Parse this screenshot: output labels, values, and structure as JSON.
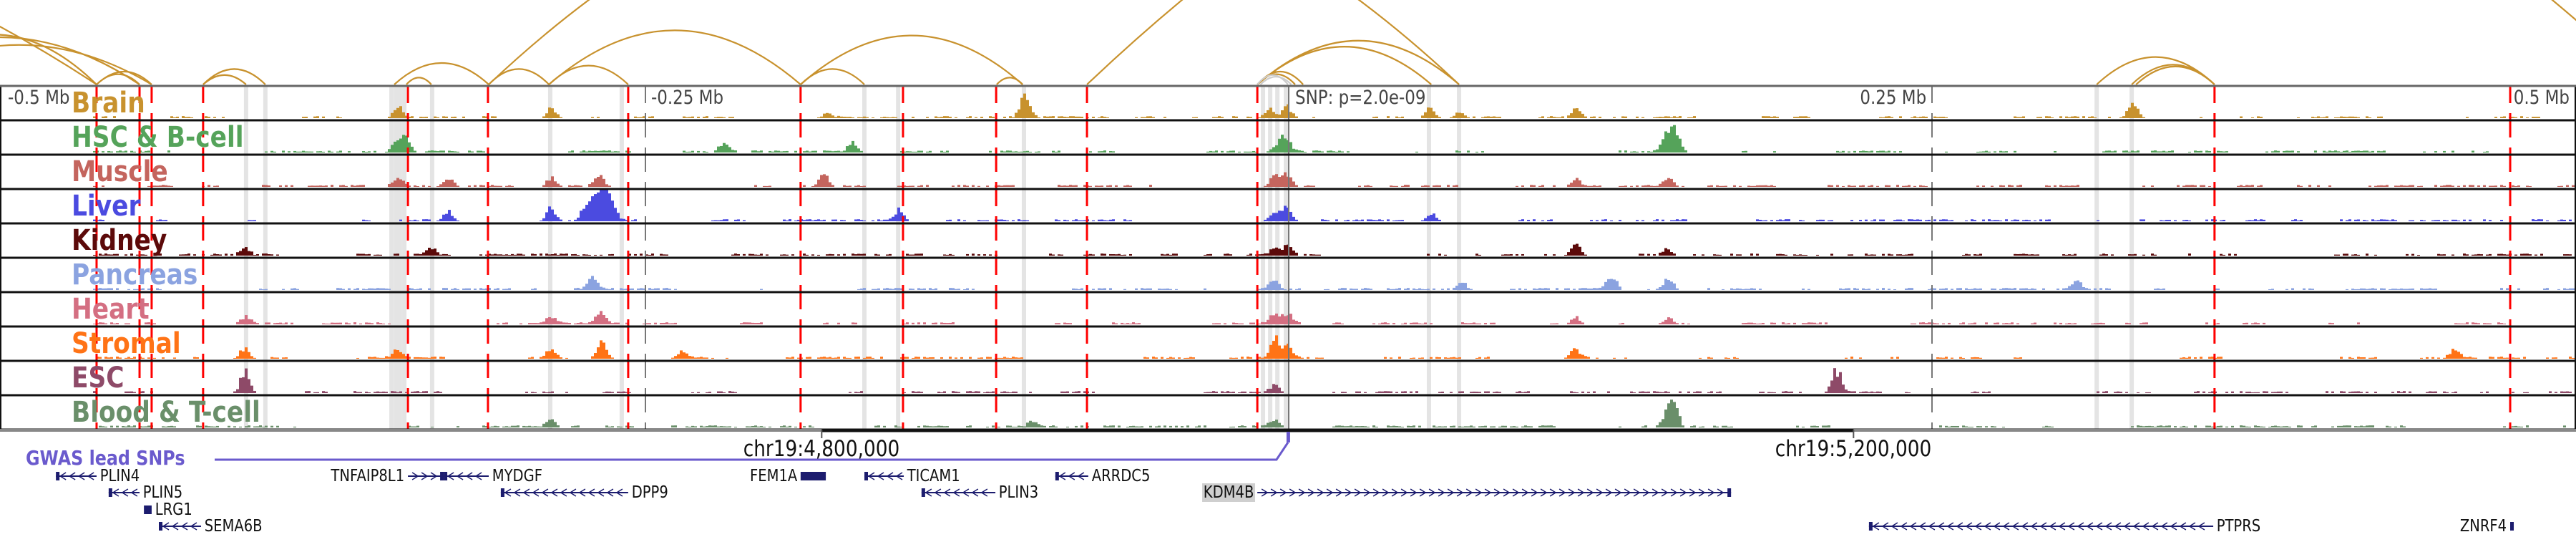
{
  "axis": {
    "labels": [
      {
        "text": "-0.5 Mb",
        "kb": -500,
        "align": "left"
      },
      {
        "text": "-0.25 Mb",
        "kb": -250,
        "align": "left"
      },
      {
        "text": "0.25 Mb",
        "kb": 250,
        "align": "right"
      },
      {
        "text": "0.5 Mb",
        "kb": 500,
        "align": "right"
      }
    ],
    "snp_label": "SNP: p=2.0e-09",
    "coords": [
      {
        "text": "chr19:4,800,000",
        "kb": -181.5
      },
      {
        "text": "chr19:5,200,000",
        "kb": 219.5
      }
    ]
  },
  "colors": {
    "loop": "#c8922e",
    "loop_muted": "#cccccc",
    "enhancer_band": "#e4e4e4",
    "red_line": "#ff0000",
    "gwas": "#6a5acd",
    "gene": "#1c1c6e"
  },
  "tracks": [
    {
      "name": "Brain",
      "color": "#c8922e",
      "peaks": [
        [
          -346.5,
          0.5
        ],
        [
          -287,
          0.4
        ],
        [
          -102.9,
          0.95
        ],
        [
          -1.1,
          0.5
        ],
        [
          -8,
          0.4
        ],
        [
          54.5,
          0.4
        ],
        [
          111,
          0.35
        ],
        [
          66,
          0.25
        ],
        [
          327.6,
          0.6
        ],
        [
          -180,
          0.2
        ]
      ]
    },
    {
      "name": "HSC & B-cell",
      "color": "#55a35a",
      "peaks": [
        [
          -343.7,
          0.65
        ],
        [
          -347.3,
          0.4
        ],
        [
          -1.1,
          0.5
        ],
        [
          -220,
          0.35
        ],
        [
          -170,
          0.35
        ],
        [
          149.6,
          1.0
        ],
        [
          146,
          0.6
        ],
        [
          -4,
          0.4
        ]
      ]
    },
    {
      "name": "Muscle",
      "color": "#c4655e",
      "peaks": [
        [
          -346.5,
          0.3
        ],
        [
          -327.3,
          0.4
        ],
        [
          -287,
          0.4
        ],
        [
          -268.4,
          0.55
        ],
        [
          -181.3,
          0.55
        ],
        [
          -1.1,
          0.6
        ],
        [
          -6,
          0.45
        ],
        [
          111,
          0.3
        ],
        [
          147,
          0.3
        ]
      ]
    },
    {
      "name": "Liver",
      "color": "#4b4be0",
      "peaks": [
        [
          -274,
          0.6
        ],
        [
          -270.5,
          0.85
        ],
        [
          -268,
          0.75
        ],
        [
          -266,
          0.8
        ],
        [
          -263.5,
          0.6
        ],
        [
          -287,
          0.55
        ],
        [
          -327.3,
          0.4
        ],
        [
          -151.8,
          0.4
        ],
        [
          -1.1,
          0.55
        ],
        [
          -6,
          0.5
        ],
        [
          55,
          0.3
        ]
      ]
    },
    {
      "name": "Kidney",
      "color": "#5c0a0a",
      "peaks": [
        [
          -406,
          0.3
        ],
        [
          -334,
          0.35
        ],
        [
          -1.1,
          0.35
        ],
        [
          -6,
          0.3
        ],
        [
          111,
          0.45
        ],
        [
          147,
          0.25
        ]
      ]
    },
    {
      "name": "Pancreas",
      "color": "#8ba3e0",
      "peaks": [
        [
          -271.1,
          0.6
        ],
        [
          -6,
          0.35
        ],
        [
          66.5,
          0.4
        ],
        [
          124.9,
          0.65
        ],
        [
          147.1,
          0.5
        ],
        [
          305.6,
          0.35
        ]
      ]
    },
    {
      "name": "Heart",
      "color": "#d46f82",
      "peaks": [
        [
          -406,
          0.3
        ],
        [
          -287,
          0.35
        ],
        [
          -268,
          0.45
        ],
        [
          -1.1,
          0.45
        ],
        [
          -6,
          0.35
        ],
        [
          111,
          0.3
        ],
        [
          147,
          0.3
        ]
      ]
    },
    {
      "name": "Stromal",
      "color": "#ff7316",
      "peaks": [
        [
          -474.7,
          0.25
        ],
        [
          -406,
          0.4
        ],
        [
          -347,
          0.3
        ],
        [
          -287,
          0.4
        ],
        [
          -267.8,
          0.75
        ],
        [
          -236.4,
          0.3
        ],
        [
          -5.8,
          0.8
        ],
        [
          -1.1,
          0.5
        ],
        [
          111,
          0.35
        ],
        [
          453,
          0.4
        ]
      ]
    },
    {
      "name": "ESC",
      "color": "#8e4a68",
      "peaks": [
        [
          -406,
          1.0
        ],
        [
          -6,
          0.3
        ],
        [
          212.5,
          0.9
        ]
      ]
    },
    {
      "name": "Blood & T-cell",
      "color": "#6a8f6a",
      "peaks": [
        [
          -287,
          0.3
        ],
        [
          -6,
          0.3
        ],
        [
          149,
          1.0
        ],
        [
          146,
          0.45
        ],
        [
          -100,
          0.2
        ]
      ]
    }
  ],
  "red_lines_kb": [
    -463.3,
    -446.6,
    -441.9,
    -421.9,
    -342.3,
    -311.2,
    -256.7,
    -189.7,
    -149.9,
    -113.7,
    -78.4,
    -12.2,
    359.8,
    474.7
  ],
  "grid_lines_kb": [
    -250,
    250
  ],
  "center_line_kb": 0,
  "enhancer_bands_kb": [
    -405.2,
    -397.7,
    -348.7,
    -347,
    -345.4,
    -343.7,
    -332.9,
    -287,
    -259.2,
    -164.9,
    -151.8,
    -102.9,
    -10,
    -7.2,
    -4.4,
    -1.1,
    54.5,
    66.2,
    314,
    327.6
  ],
  "loops": [
    {
      "a": -890,
      "b": -463.3,
      "strength": 2.1
    },
    {
      "a": -542.6,
      "b": -463.3,
      "strength": 0.58
    },
    {
      "a": -556,
      "b": -446.6,
      "strength": 0.55
    },
    {
      "a": -545,
      "b": -441.9,
      "strength": 0.46
    },
    {
      "a": -463.3,
      "b": -441.9,
      "strength": 0.15
    },
    {
      "a": -463.3,
      "b": -446.6,
      "strength": 0.12
    },
    {
      "a": -421.9,
      "b": -397.7,
      "strength": 0.18
    },
    {
      "a": -421.9,
      "b": -405.2,
      "strength": 0.11
    },
    {
      "a": -347.6,
      "b": -310.9,
      "strength": 0.25
    },
    {
      "a": -342.9,
      "b": -333.2,
      "strength": 0.08
    },
    {
      "a": -310.9,
      "b": 66.2,
      "strength": 2.66
    },
    {
      "a": -310.9,
      "b": -287.5,
      "strength": 0.18
    },
    {
      "a": -287.5,
      "b": -189.7,
      "strength": 0.63
    },
    {
      "a": -287.5,
      "b": -256.7,
      "strength": 0.22
    },
    {
      "a": -189.7,
      "b": -103.4,
      "strength": 0.57
    },
    {
      "a": -189.7,
      "b": -164.9,
      "strength": 0.18
    },
    {
      "a": -113.5,
      "b": -103.4,
      "strength": 0.08
    },
    {
      "a": -78.4,
      "b": 528,
      "strength": 4.3
    },
    {
      "a": -12.2,
      "b": 66.2,
      "strength": 0.51
    },
    {
      "a": -12.2,
      "b": 55.4,
      "strength": 0.44
    },
    {
      "a": -12.2,
      "b": 5.6,
      "strength": 0.15
    },
    {
      "a": -12.2,
      "b": 2.5,
      "strength": 0.12
    },
    {
      "a": -12.2,
      "b": -0.3,
      "strength": 0.11,
      "muted": true
    },
    {
      "a": -11,
      "b": 1,
      "strength": 0.09,
      "muted": true
    },
    {
      "a": 314,
      "b": 359.8,
      "strength": 0.32
    },
    {
      "a": 327.6,
      "b": 359.8,
      "strength": 0.23
    },
    {
      "a": 329.3,
      "b": 359.8,
      "strength": 0.21
    }
  ],
  "gwas": {
    "label": "GWAS lead SNPs",
    "snp_kb": -0.3
  },
  "genes": [
    {
      "name": "PLIN4",
      "start": -479.1,
      "end": -463.3,
      "strand": "-",
      "row": 0,
      "label_side": "right"
    },
    {
      "name": "TNFAIP8L1",
      "start": -342.3,
      "end": -328.4,
      "strand": "+",
      "row": 0,
      "label_side": "left"
    },
    {
      "name": "MYDGF",
      "start": -328.4,
      "end": -310.9,
      "strand": "-",
      "row": 0,
      "label_side": "right"
    },
    {
      "name": "FEM1A",
      "start": -189.7,
      "end": -179.9,
      "strand": "box",
      "row": 0,
      "label_side": "left"
    },
    {
      "name": "TICAM1",
      "start": -164.9,
      "end": -149.6,
      "strand": "-",
      "row": 0,
      "label_side": "right"
    },
    {
      "name": "ARRDC5",
      "start": -90.7,
      "end": -77.9,
      "strand": "-",
      "row": 0,
      "label_side": "right"
    },
    {
      "name": "PLIN5",
      "start": -458.6,
      "end": -446.6,
      "strand": "-",
      "row": 1,
      "label_side": "right"
    },
    {
      "name": "DPP9",
      "start": -306.2,
      "end": -256.7,
      "strand": "-",
      "row": 1,
      "label_side": "right"
    },
    {
      "name": "PLIN3",
      "start": -142.7,
      "end": -114.0,
      "strand": "-",
      "row": 1,
      "label_side": "right"
    },
    {
      "name": "KDM4B",
      "start": -12.2,
      "end": 171.9,
      "strand": "+",
      "row": 1,
      "label_side": "left",
      "highlight": true
    },
    {
      "name": "LRG1",
      "start": -444.9,
      "end": -441.9,
      "strand": "box",
      "row": 2,
      "label_side": "right"
    },
    {
      "name": "SEMA6B",
      "start": -439.1,
      "end": -422.7,
      "strand": "-",
      "row": 3,
      "label_side": "right"
    },
    {
      "name": "PTPRS",
      "start": 225.5,
      "end": 359.3,
      "strand": "-",
      "row": 3,
      "label_side": "right"
    },
    {
      "name": "ZNRF4",
      "start": 474.7,
      "end": 475.8,
      "strand": "box",
      "row": 3,
      "label_side": "left"
    }
  ]
}
